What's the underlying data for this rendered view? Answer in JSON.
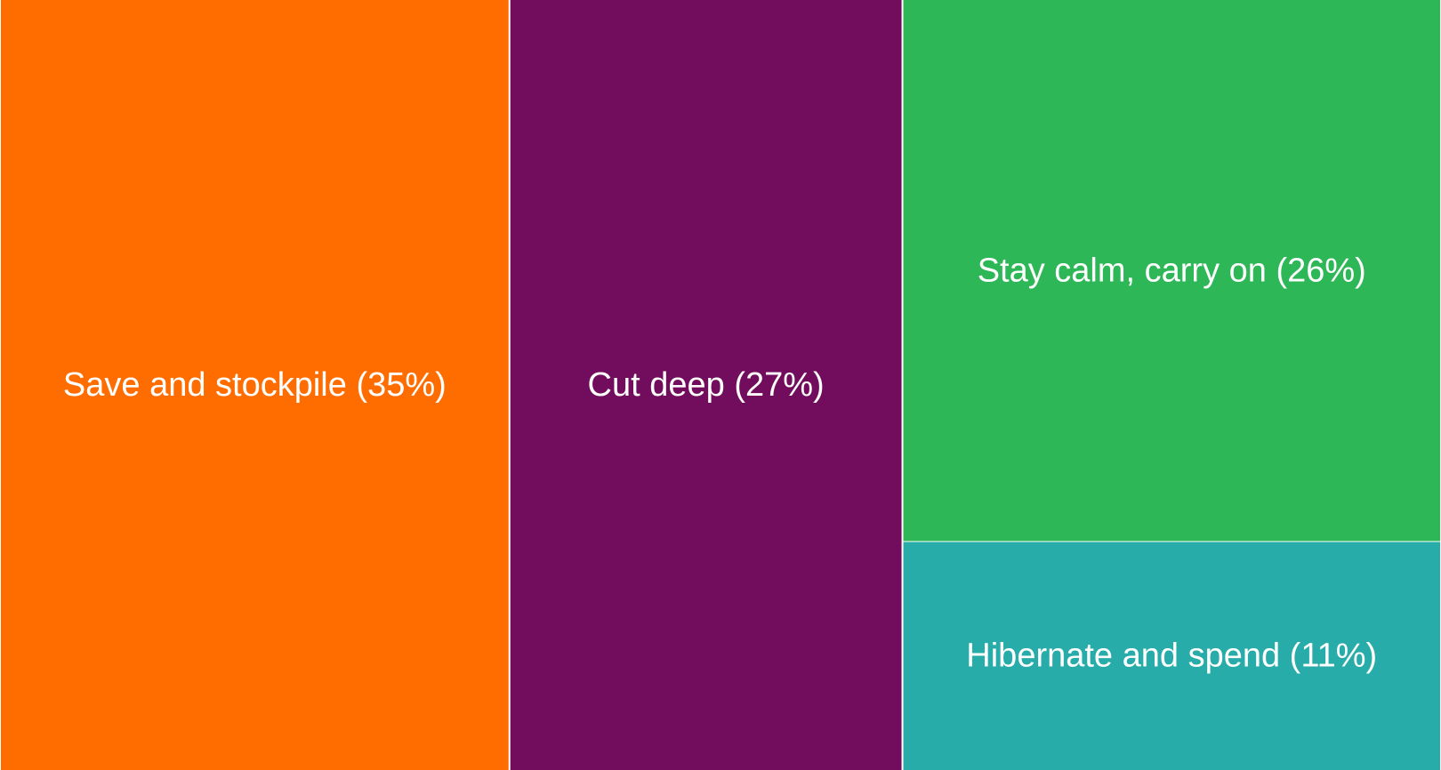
{
  "chart_data": {
    "type": "treemap",
    "title": "",
    "unit": "%",
    "items": [
      {
        "label": "Save and stockpile (35%)",
        "value": 35,
        "color": "#FF6D00"
      },
      {
        "label": "Cut deep (27%)",
        "value": 27,
        "color": "#720D5D"
      },
      {
        "label": "Stay calm, carry on (26%)",
        "value": 26,
        "color": "#2DB757"
      },
      {
        "label": "Hibernate and spend (11%)",
        "value": 11,
        "color": "#27ACAA"
      }
    ]
  }
}
